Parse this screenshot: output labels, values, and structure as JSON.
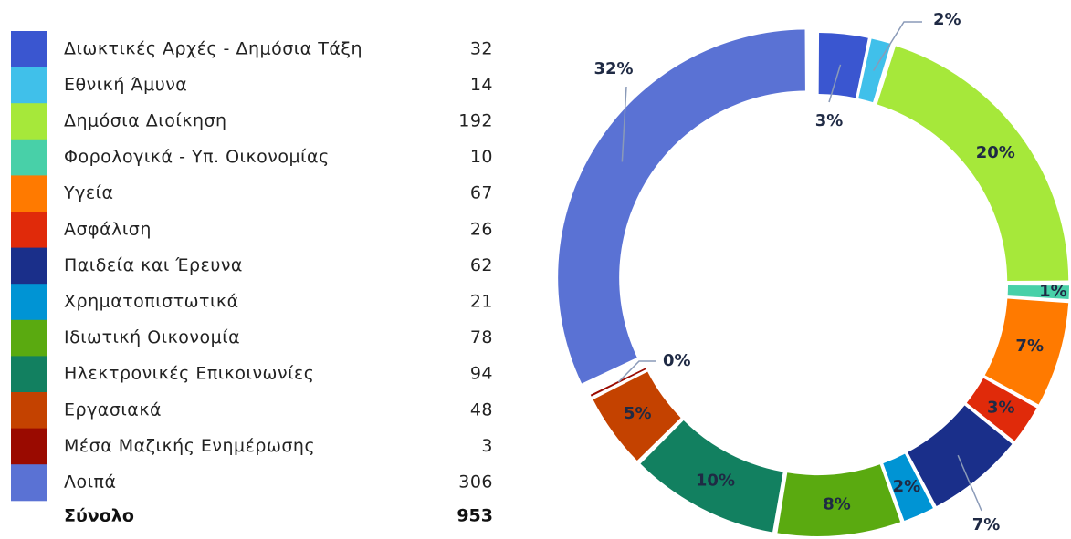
{
  "chart_data": {
    "type": "donut",
    "categories": [
      "Διωκτικές Αρχές - Δημόσια Τάξη",
      "Εθνική Άμυνα",
      "Δημόσια Διοίκηση",
      "Φορολογικά - Υπ. Οικονομίας",
      "Υγεία",
      "Ασφάλιση",
      "Παιδεία και Έρευνα",
      "Χρηματοπιστωτικά",
      "Ιδιωτική Οικονομία",
      "Ηλεκτρονικές Επικοινωνίες",
      "Εργασιακά",
      "Μέσα Μαζικής Ενημέρωσης",
      "Λοιπά"
    ],
    "values": [
      32,
      14,
      192,
      10,
      67,
      26,
      62,
      21,
      78,
      94,
      48,
      3,
      306
    ],
    "percent_labels": [
      "3%",
      "2%",
      "20%",
      "1%",
      "7%",
      "3%",
      "7%",
      "2%",
      "8%",
      "10%",
      "5%",
      "0%",
      "32%"
    ],
    "colors": [
      "#3a56d0",
      "#40c0ea",
      "#a6e83a",
      "#48d0a8",
      "#ff7a00",
      "#e02a0a",
      "#1a2f8a",
      "#0094d4",
      "#5aaa10",
      "#128060",
      "#c44200",
      "#9a0a00",
      "#5a72d4"
    ],
    "total_label": "Σύνολο",
    "total": 953
  }
}
